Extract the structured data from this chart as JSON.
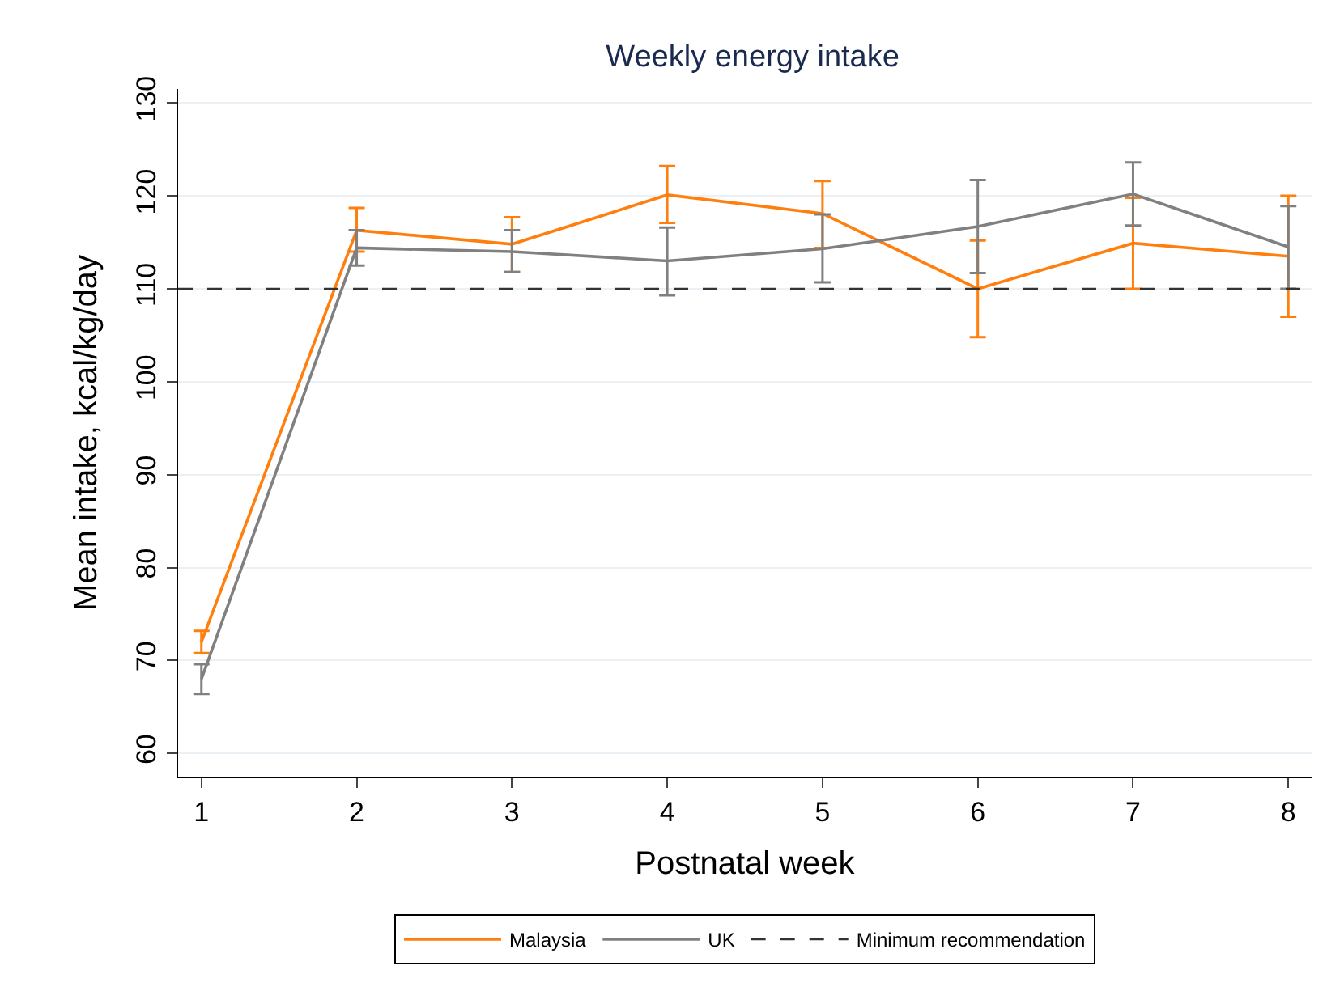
{
  "chart_data": {
    "type": "line",
    "title": "Weekly energy intake",
    "xlabel": "Postnatal week",
    "ylabel": "Mean intake, kcal/kg/day",
    "x": [
      1,
      2,
      3,
      4,
      5,
      6,
      7,
      8
    ],
    "series": [
      {
        "name": "Malaysia",
        "color": "#ff7f0e",
        "values": [
          72,
          116.3,
          114.8,
          120.1,
          118.1,
          110,
          114.9,
          113.5
        ],
        "errors": [
          [
            70.8,
            73.2
          ],
          [
            114,
            118.7
          ],
          [
            111.8,
            117.7
          ],
          [
            117.1,
            123.2
          ],
          [
            114.4,
            121.6
          ],
          [
            104.8,
            115.2
          ],
          [
            110,
            119.8
          ],
          [
            107,
            120
          ]
        ]
      },
      {
        "name": "UK",
        "color": "#808080",
        "values": [
          68,
          114.4,
          114,
          113,
          114.3,
          116.7,
          120.2,
          114.5
        ],
        "errors": [
          [
            66.4,
            69.6
          ],
          [
            112.5,
            116.3
          ],
          [
            111.8,
            116.3
          ],
          [
            109.3,
            116.6
          ],
          [
            110.7,
            118
          ],
          [
            111.7,
            121.7
          ],
          [
            116.8,
            123.6
          ],
          [
            110,
            118.9
          ]
        ]
      }
    ],
    "ref_lines": [
      {
        "axis": "y",
        "value": 110,
        "label": "Minimum recommendation",
        "color": "#333333",
        "line_style": "dashed"
      }
    ],
    "xlim": [
      0.85,
      8.15
    ],
    "xticks": [
      1,
      2,
      3,
      4,
      5,
      6,
      7,
      8
    ],
    "ylim": [
      57.5,
      131.5
    ],
    "yticks": [
      60,
      70,
      80,
      90,
      100,
      110,
      120,
      130
    ],
    "grid": "y",
    "legend": "bottom",
    "marker": "none",
    "line_style": "solid"
  }
}
